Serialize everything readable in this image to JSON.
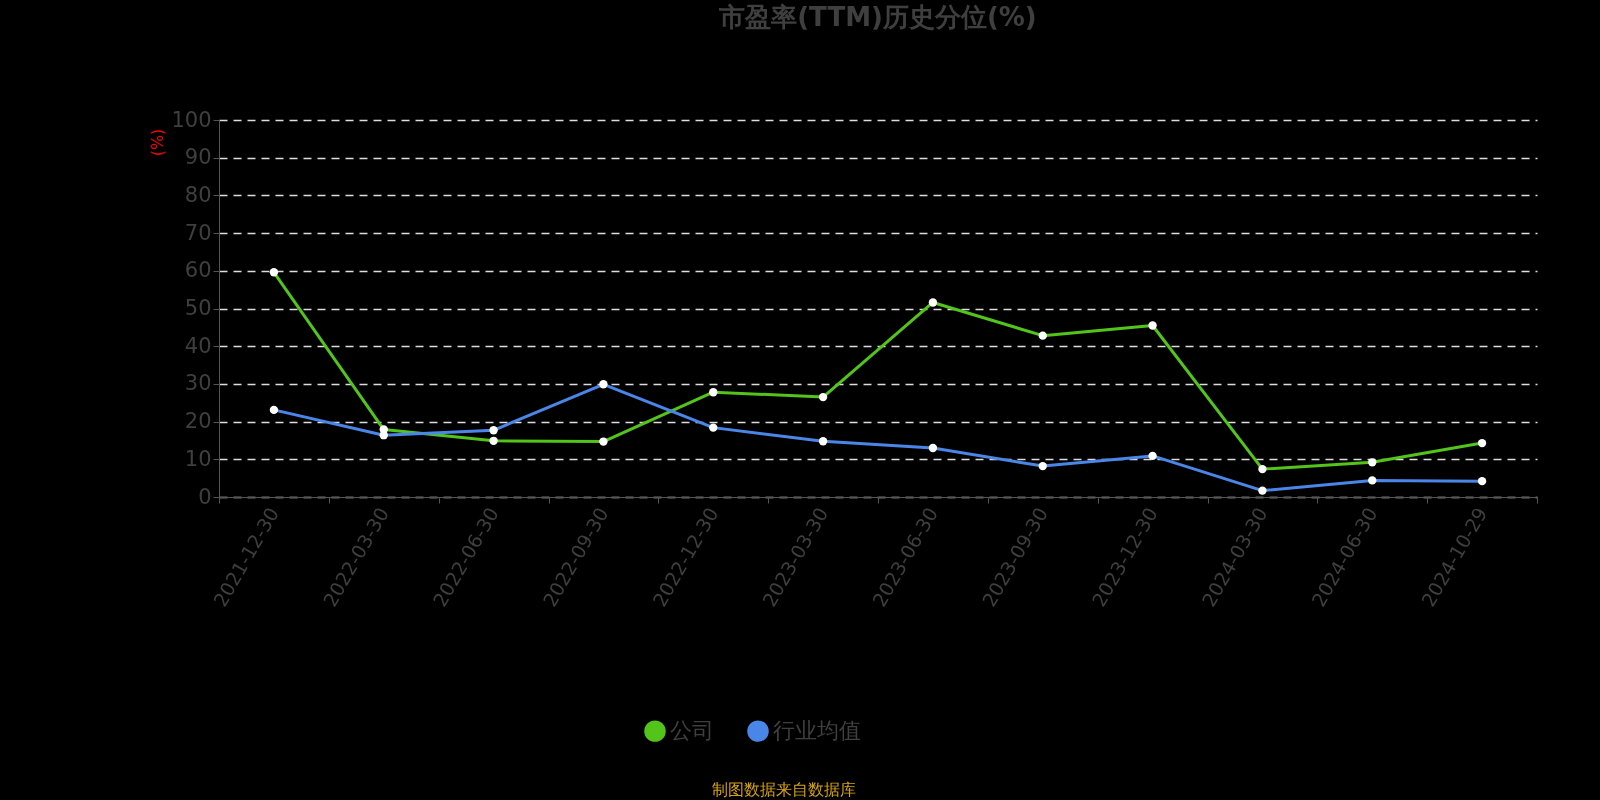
{
  "chart_data": {
    "type": "line",
    "title": "市盈率(TTM)历史分位(%)",
    "ylabel": "(%)",
    "categories": [
      "2021-12-30",
      "2022-03-30",
      "2022-06-30",
      "2022-09-30",
      "2022-12-30",
      "2023-03-30",
      "2023-06-30",
      "2023-09-30",
      "2023-12-30",
      "2024-03-30",
      "2024-06-30",
      "2024-10-29"
    ],
    "series": [
      {
        "name": "公司",
        "color": "#52c41a",
        "values": [
          59.6,
          17.9,
          14.9,
          14.7,
          27.8,
          26.5,
          51.6,
          42.8,
          45.5,
          7.4,
          9.2,
          14.3
        ]
      },
      {
        "name": "行业均值",
        "color": "#4a86e8",
        "values": [
          23.1,
          16.4,
          17.7,
          29.9,
          18.4,
          14.8,
          13.0,
          8.2,
          10.9,
          1.7,
          4.4,
          4.2
        ]
      }
    ],
    "ylim": [
      0,
      100
    ],
    "yticks": [
      0,
      10,
      20,
      30,
      40,
      50,
      60,
      70,
      80,
      90,
      100
    ],
    "grid": "y",
    "legend": "bottom",
    "marker": "circle",
    "line_style": "solid",
    "annotations": [
      "制图数据来自数据库"
    ]
  }
}
